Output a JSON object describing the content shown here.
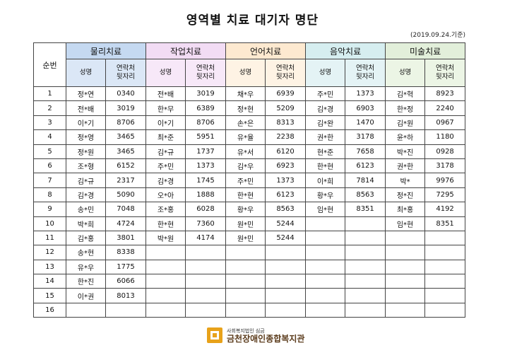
{
  "title": "영역별 치료 대기자 명단",
  "date": "(2019.09.24.기준)",
  "header": {
    "seq_label": "순번",
    "areas": [
      "물리치료",
      "작업치료",
      "언어치료",
      "음악치료",
      "미술치료"
    ],
    "name_label": "성명",
    "contact_label": "연락처\n뒷자리"
  },
  "colors": {
    "physical": "#c5d9f1",
    "occupational": "#f2dcf4",
    "speech": "#fde9d0",
    "music": "#d6eef0",
    "art": "#e2efda",
    "logo": "#e8a21a"
  },
  "rows": [
    {
      "n": "1",
      "c": [
        [
          "정*연",
          "0340"
        ],
        [
          "전*배",
          "3019"
        ],
        [
          "채*우",
          "6939"
        ],
        [
          "주*민",
          "1373"
        ],
        [
          "김*혁",
          "8923"
        ]
      ]
    },
    {
      "n": "2",
      "c": [
        [
          "전*배",
          "3019"
        ],
        [
          "한*무",
          "6389"
        ],
        [
          "정*현",
          "5209"
        ],
        [
          "김*경",
          "6903"
        ],
        [
          "한*정",
          "2240"
        ]
      ]
    },
    {
      "n": "3",
      "c": [
        [
          "이*기",
          "8706"
        ],
        [
          "이*기",
          "8706"
        ],
        [
          "손*은",
          "8313"
        ],
        [
          "김*완",
          "1470"
        ],
        [
          "김*원",
          "0967"
        ]
      ]
    },
    {
      "n": "4",
      "c": [
        [
          "정*영",
          "3465"
        ],
        [
          "최*준",
          "5951"
        ],
        [
          "유*율",
          "2238"
        ],
        [
          "권*한",
          "3178"
        ],
        [
          "윤*하",
          "1180"
        ]
      ]
    },
    {
      "n": "5",
      "c": [
        [
          "정*원",
          "3465"
        ],
        [
          "김*규",
          "1737"
        ],
        [
          "유*서",
          "6120"
        ],
        [
          "현*준",
          "7658"
        ],
        [
          "박*진",
          "0928"
        ]
      ]
    },
    {
      "n": "6",
      "c": [
        [
          "조*형",
          "6152"
        ],
        [
          "주*민",
          "1373"
        ],
        [
          "김*우",
          "6923"
        ],
        [
          "한*현",
          "6123"
        ],
        [
          "권*한",
          "3178"
        ]
      ]
    },
    {
      "n": "7",
      "c": [
        [
          "김*규",
          "2317"
        ],
        [
          "김*경",
          "1745"
        ],
        [
          "주*민",
          "1373"
        ],
        [
          "이*희",
          "7814"
        ],
        [
          "박*",
          "9976"
        ]
      ]
    },
    {
      "n": "8",
      "c": [
        [
          "김*경",
          "5090"
        ],
        [
          "오*아",
          "1888"
        ],
        [
          "한*현",
          "6123"
        ],
        [
          "황*우",
          "8563"
        ],
        [
          "정*진",
          "7295"
        ]
      ]
    },
    {
      "n": "9",
      "c": [
        [
          "송*민",
          "7048"
        ],
        [
          "조*홍",
          "6028"
        ],
        [
          "황*우",
          "8563"
        ],
        [
          "임*현",
          "8351"
        ],
        [
          "최*홍",
          "4192"
        ]
      ]
    },
    {
      "n": "10",
      "c": [
        [
          "박*희",
          "4724"
        ],
        [
          "한*현",
          "7360"
        ],
        [
          "원*민",
          "5244"
        ],
        [
          "",
          ""
        ],
        [
          "임*현",
          "8351"
        ]
      ]
    },
    {
      "n": "11",
      "c": [
        [
          "김*홍",
          "3801"
        ],
        [
          "박*원",
          "4174"
        ],
        [
          "원*민",
          "5244"
        ],
        [
          "",
          ""
        ],
        [
          "",
          ""
        ]
      ]
    },
    {
      "n": "12",
      "c": [
        [
          "송*현",
          "8338"
        ],
        [
          "",
          ""
        ],
        [
          "",
          ""
        ],
        [
          "",
          ""
        ],
        [
          "",
          ""
        ]
      ]
    },
    {
      "n": "13",
      "c": [
        [
          "유*우",
          "1775"
        ],
        [
          "",
          ""
        ],
        [
          "",
          ""
        ],
        [
          "",
          ""
        ],
        [
          "",
          ""
        ]
      ]
    },
    {
      "n": "14",
      "c": [
        [
          "한*진",
          "6066"
        ],
        [
          "",
          ""
        ],
        [
          "",
          ""
        ],
        [
          "",
          ""
        ],
        [
          "",
          ""
        ]
      ]
    },
    {
      "n": "15",
      "c": [
        [
          "이*권",
          "8013"
        ],
        [
          "",
          ""
        ],
        [
          "",
          ""
        ],
        [
          "",
          ""
        ],
        [
          "",
          ""
        ]
      ]
    },
    {
      "n": "16",
      "c": [
        [
          "",
          ""
        ],
        [
          "",
          ""
        ],
        [
          "",
          ""
        ],
        [
          "",
          ""
        ],
        [
          "",
          ""
        ]
      ]
    }
  ],
  "footer": {
    "org_small": "사회복지법인 심금",
    "org_name": "금천장애인종합복지관",
    "logo_icon": "square-logo-icon"
  }
}
